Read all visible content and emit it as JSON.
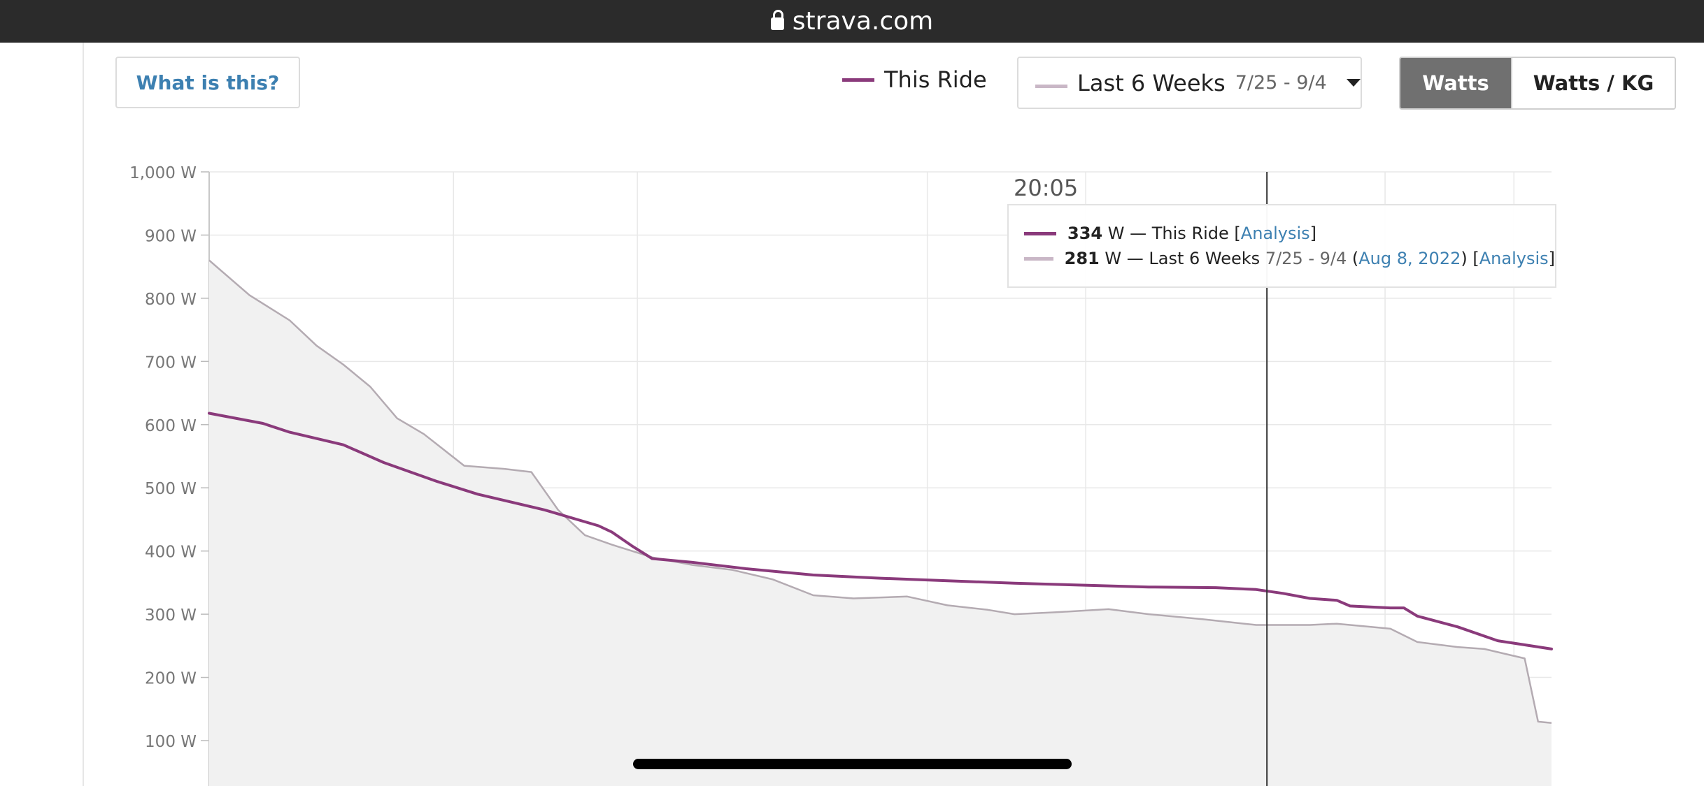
{
  "browser": {
    "url": "strava.com"
  },
  "controls": {
    "what_is_this": "What is this?",
    "legend_this": "This Ride",
    "period_label": "Last 6 Weeks",
    "period_range": "7/25 - 9/4",
    "toggle_watts": "Watts",
    "toggle_wkg": "Watts / KG"
  },
  "tooltip": {
    "time": "20:05",
    "row1": {
      "value": "334",
      "unit": "W",
      "dash": "—",
      "label": "This Ride",
      "link": "Analysis"
    },
    "row2": {
      "value": "281",
      "unit": "W",
      "dash": "—",
      "label": "Last 6 Weeks",
      "range": "7/25 - 9/4",
      "date": "Aug 8, 2022",
      "link": "Analysis"
    }
  },
  "colors": {
    "this_ride": "#8a3a7b",
    "last_6_weeks": "#c9b7c6",
    "area_fill": "#f1f1f1",
    "grid": "#e8e8e8",
    "cursor": "#333333"
  },
  "chart_data": {
    "type": "line",
    "ylim": [
      0,
      1000
    ],
    "y_ticks": [
      {
        "value": 100,
        "label": "100 W"
      },
      {
        "value": 200,
        "label": "200 W"
      },
      {
        "value": 300,
        "label": "300 W"
      },
      {
        "value": 400,
        "label": "400 W"
      },
      {
        "value": 500,
        "label": "500 W"
      },
      {
        "value": 600,
        "label": "600 W"
      },
      {
        "value": 700,
        "label": "700 W"
      },
      {
        "value": 800,
        "label": "800 W"
      },
      {
        "value": 900,
        "label": "900 W"
      },
      {
        "value": 1000,
        "label": "1,000 W"
      }
    ],
    "grid": true,
    "x_gridlines": [
      0.182,
      0.319,
      0.535,
      0.653,
      0.876,
      0.972
    ],
    "cursor_x": 0.788,
    "series": [
      {
        "name": "This Ride",
        "x": [
          0,
          0.04,
          0.06,
          0.1,
          0.13,
          0.17,
          0.2,
          0.25,
          0.29,
          0.3,
          0.315,
          0.33,
          0.36,
          0.4,
          0.45,
          0.5,
          0.55,
          0.6,
          0.65,
          0.7,
          0.75,
          0.78,
          0.8,
          0.82,
          0.84,
          0.85,
          0.88,
          0.89,
          0.9,
          0.93,
          0.96,
          1.0
        ],
        "values": [
          618,
          602,
          588,
          568,
          540,
          510,
          490,
          465,
          440,
          430,
          408,
          388,
          382,
          372,
          362,
          357,
          353,
          349,
          346,
          343,
          342,
          339,
          333,
          325,
          322,
          313,
          310,
          310,
          297,
          280,
          258,
          245
        ]
      },
      {
        "name": "Last 6 Weeks",
        "x": [
          0,
          0.03,
          0.06,
          0.08,
          0.1,
          0.12,
          0.14,
          0.16,
          0.19,
          0.22,
          0.24,
          0.26,
          0.28,
          0.3,
          0.33,
          0.36,
          0.39,
          0.42,
          0.45,
          0.48,
          0.52,
          0.55,
          0.58,
          0.6,
          0.63,
          0.67,
          0.7,
          0.74,
          0.78,
          0.82,
          0.84,
          0.86,
          0.88,
          0.9,
          0.93,
          0.95,
          0.98,
          0.99,
          1.0
        ],
        "values": [
          860,
          805,
          765,
          725,
          695,
          660,
          610,
          585,
          535,
          530,
          525,
          465,
          425,
          410,
          390,
          378,
          370,
          355,
          330,
          325,
          328,
          314,
          307,
          300,
          303,
          308,
          300,
          292,
          283,
          283,
          285,
          281,
          277,
          256,
          248,
          245,
          230,
          130,
          128
        ]
      }
    ]
  }
}
